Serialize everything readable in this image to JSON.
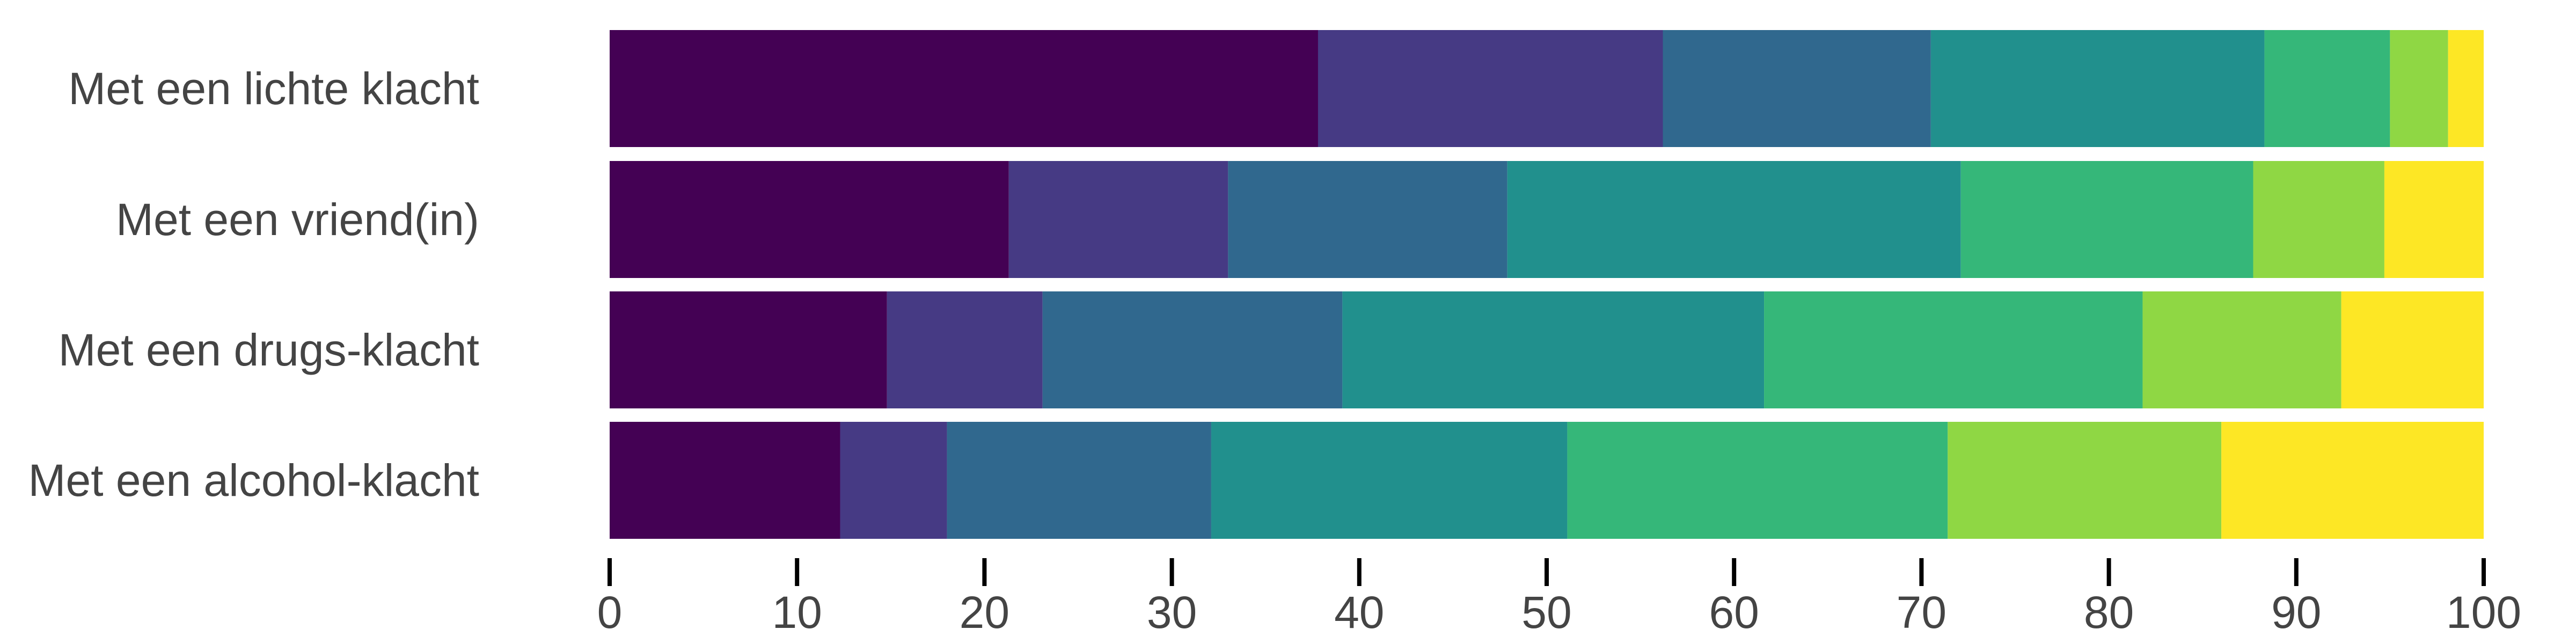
{
  "chart_data": {
    "type": "bar",
    "orientation": "horizontal",
    "stacked": true,
    "categories": [
      "Met een lichte klacht",
      "Met een vriend(in)",
      "Met een drugs-klacht",
      "Met een alcohol-klacht"
    ],
    "segment_colors": [
      "#440154",
      "#463a84",
      "#30688e",
      "#21908d",
      "#35b779",
      "#8fd744",
      "#fde725"
    ],
    "segments": [
      [
        37.8,
        18.4,
        14.3,
        17.8,
        6.7,
        3.1,
        1.9
      ],
      [
        21.3,
        11.7,
        14.9,
        24.2,
        15.6,
        7.0,
        5.3
      ],
      [
        14.8,
        8.3,
        16.0,
        22.5,
        20.2,
        10.6,
        7.6
      ],
      [
        12.3,
        5.7,
        14.1,
        19.0,
        20.3,
        14.6,
        14.0
      ]
    ],
    "xlim": [
      0,
      100
    ],
    "xticks": [
      "0",
      "10",
      "20",
      "30",
      "40",
      "50",
      "60",
      "70",
      "80",
      "90",
      "100"
    ],
    "grid": false,
    "legend": "none"
  }
}
